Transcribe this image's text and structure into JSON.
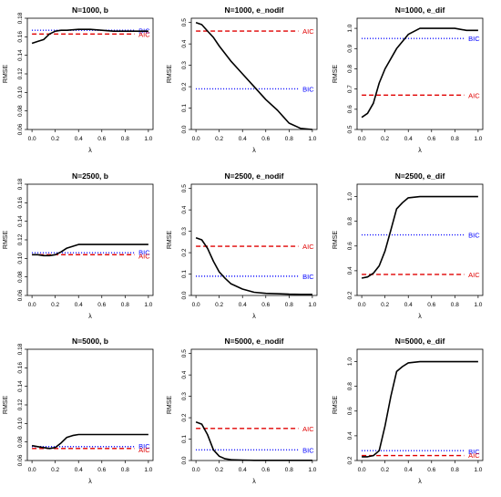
{
  "chart_data": [
    {
      "type": "line",
      "title": "N=1000, b",
      "xlabel": "λ",
      "ylabel": "RMSE",
      "xlim": [
        0,
        1
      ],
      "ylim": [
        0.06,
        0.18
      ],
      "xticks": [
        "0.0",
        "0.2",
        "0.4",
        "0.6",
        "0.8",
        "1.0"
      ],
      "yticks": [
        "0.06",
        "0.08",
        "0.10",
        "0.12",
        "0.14",
        "0.16",
        "0.18"
      ],
      "x": [
        0,
        0.05,
        0.1,
        0.15,
        0.2,
        0.25,
        0.3,
        0.4,
        0.5,
        0.6,
        0.7,
        0.8,
        0.9,
        1.0
      ],
      "series": [
        {
          "values": [
            0.153,
            0.155,
            0.157,
            0.163,
            0.166,
            0.167,
            0.167,
            0.168,
            0.168,
            0.167,
            0.166,
            0.166,
            0.166,
            0.166
          ]
        }
      ],
      "reference_lines": [
        {
          "label": "BIC",
          "value": 0.167,
          "style": "dotted",
          "color": "#0000ff"
        },
        {
          "label": "AIC",
          "value": 0.163,
          "style": "dashed",
          "color": "#e00000"
        }
      ]
    },
    {
      "type": "line",
      "title": "N=1000, e_nodif",
      "xlabel": "λ",
      "ylabel": "RMSE",
      "xlim": [
        0,
        1
      ],
      "ylim": [
        0,
        0.52
      ],
      "xticks": [
        "0.0",
        "0.2",
        "0.4",
        "0.6",
        "0.8",
        "1.0"
      ],
      "yticks": [
        "0.0",
        "0.1",
        "0.2",
        "0.3",
        "0.4",
        "0.5"
      ],
      "x": [
        0,
        0.05,
        0.1,
        0.15,
        0.2,
        0.3,
        0.4,
        0.5,
        0.6,
        0.7,
        0.8,
        0.9,
        1.0
      ],
      "series": [
        {
          "values": [
            0.5,
            0.49,
            0.46,
            0.43,
            0.39,
            0.32,
            0.26,
            0.2,
            0.14,
            0.09,
            0.03,
            0.005,
            0.0
          ]
        }
      ],
      "reference_lines": [
        {
          "label": "AIC",
          "value": 0.46,
          "style": "dashed",
          "color": "#e00000"
        },
        {
          "label": "BIC",
          "value": 0.19,
          "style": "dotted",
          "color": "#0000ff"
        }
      ]
    },
    {
      "type": "line",
      "title": "N=1000, e_dif",
      "xlabel": "λ",
      "ylabel": "RMSE",
      "xlim": [
        0,
        1
      ],
      "ylim": [
        0.5,
        1.05
      ],
      "xticks": [
        "0.0",
        "0.2",
        "0.4",
        "0.6",
        "0.8",
        "1.0"
      ],
      "yticks": [
        "0.5",
        "0.6",
        "0.7",
        "0.8",
        "0.9",
        "1.0"
      ],
      "x": [
        0,
        0.05,
        0.1,
        0.15,
        0.2,
        0.3,
        0.4,
        0.5,
        0.6,
        0.7,
        0.8,
        0.9,
        1.0
      ],
      "series": [
        {
          "values": [
            0.56,
            0.58,
            0.63,
            0.73,
            0.8,
            0.9,
            0.97,
            1.0,
            1.0,
            1.0,
            1.0,
            0.99,
            0.99
          ]
        }
      ],
      "reference_lines": [
        {
          "label": "BIC",
          "value": 0.95,
          "style": "dotted",
          "color": "#0000ff"
        },
        {
          "label": "AIC",
          "value": 0.67,
          "style": "dashed",
          "color": "#e00000"
        }
      ]
    },
    {
      "type": "line",
      "title": "N=2500, b",
      "xlabel": "λ",
      "ylabel": "RMSE",
      "xlim": [
        0,
        1
      ],
      "ylim": [
        0.06,
        0.18
      ],
      "xticks": [
        "0.0",
        "0.2",
        "0.4",
        "0.6",
        "0.8",
        "1.0"
      ],
      "yticks": [
        "0.06",
        "0.08",
        "0.10",
        "0.12",
        "0.14",
        "0.16",
        "0.18"
      ],
      "x": [
        0,
        0.05,
        0.1,
        0.15,
        0.2,
        0.25,
        0.3,
        0.35,
        0.4,
        0.5,
        0.6,
        0.7,
        0.8,
        0.9,
        1.0
      ],
      "series": [
        {
          "values": [
            0.104,
            0.104,
            0.103,
            0.103,
            0.104,
            0.107,
            0.111,
            0.113,
            0.115,
            0.115,
            0.115,
            0.115,
            0.115,
            0.115,
            0.115
          ]
        }
      ],
      "reference_lines": [
        {
          "label": "BIC",
          "value": 0.106,
          "style": "dotted",
          "color": "#0000ff"
        },
        {
          "label": "AIC",
          "value": 0.104,
          "style": "dashed",
          "color": "#e00000"
        }
      ]
    },
    {
      "type": "line",
      "title": "N=2500, e_nodif",
      "xlabel": "λ",
      "ylabel": "RMSE",
      "xlim": [
        0,
        1
      ],
      "ylim": [
        0,
        0.52
      ],
      "xticks": [
        "0.0",
        "0.2",
        "0.4",
        "0.6",
        "0.8",
        "1.0"
      ],
      "yticks": [
        "0.0",
        "0.1",
        "0.2",
        "0.3",
        "0.4",
        "0.5"
      ],
      "x": [
        0,
        0.05,
        0.1,
        0.15,
        0.2,
        0.25,
        0.3,
        0.4,
        0.5,
        0.6,
        0.7,
        0.8,
        0.9,
        1.0
      ],
      "series": [
        {
          "values": [
            0.27,
            0.26,
            0.22,
            0.16,
            0.11,
            0.08,
            0.055,
            0.03,
            0.015,
            0.01,
            0.008,
            0.006,
            0.005,
            0.005
          ]
        }
      ],
      "reference_lines": [
        {
          "label": "AIC",
          "value": 0.23,
          "style": "dashed",
          "color": "#e00000"
        },
        {
          "label": "BIC",
          "value": 0.09,
          "style": "dotted",
          "color": "#0000ff"
        }
      ]
    },
    {
      "type": "line",
      "title": "N=2500, e_dif",
      "xlabel": "λ",
      "ylabel": "RMSE",
      "xlim": [
        0,
        1
      ],
      "ylim": [
        0.2,
        1.1
      ],
      "xticks": [
        "0.0",
        "0.2",
        "0.4",
        "0.6",
        "0.8",
        "1.0"
      ],
      "yticks": [
        "0.2",
        "0.4",
        "0.6",
        "0.8",
        "1.0"
      ],
      "x": [
        0,
        0.05,
        0.1,
        0.15,
        0.2,
        0.25,
        0.3,
        0.35,
        0.4,
        0.5,
        0.6,
        0.7,
        0.8,
        0.9,
        1.0
      ],
      "series": [
        {
          "values": [
            0.34,
            0.35,
            0.38,
            0.44,
            0.56,
            0.73,
            0.9,
            0.95,
            0.99,
            1.0,
            1.0,
            1.0,
            1.0,
            1.0,
            1.0
          ]
        }
      ],
      "reference_lines": [
        {
          "label": "BIC",
          "value": 0.69,
          "style": "dotted",
          "color": "#0000ff"
        },
        {
          "label": "AIC",
          "value": 0.37,
          "style": "dashed",
          "color": "#e00000"
        }
      ]
    },
    {
      "type": "line",
      "title": "N=5000, b",
      "xlabel": "λ",
      "ylabel": "RMSE",
      "xlim": [
        0,
        1
      ],
      "ylim": [
        0.06,
        0.18
      ],
      "xticks": [
        "0.0",
        "0.2",
        "0.4",
        "0.6",
        "0.8",
        "1.0"
      ],
      "yticks": [
        "0.06",
        "0.08",
        "0.10",
        "0.12",
        "0.14",
        "0.16",
        "0.18"
      ],
      "x": [
        0,
        0.05,
        0.1,
        0.15,
        0.2,
        0.25,
        0.3,
        0.35,
        0.4,
        0.5,
        0.6,
        0.7,
        0.8,
        0.9,
        1.0
      ],
      "series": [
        {
          "values": [
            0.076,
            0.075,
            0.074,
            0.073,
            0.074,
            0.079,
            0.085,
            0.087,
            0.088,
            0.088,
            0.088,
            0.088,
            0.088,
            0.088,
            0.088
          ]
        }
      ],
      "reference_lines": [
        {
          "label": "BIC",
          "value": 0.075,
          "style": "dotted",
          "color": "#0000ff"
        },
        {
          "label": "AIC",
          "value": 0.073,
          "style": "dashed",
          "color": "#e00000"
        }
      ]
    },
    {
      "type": "line",
      "title": "N=5000, e_nodif",
      "xlabel": "λ",
      "ylabel": "RMSE",
      "xlim": [
        0,
        1
      ],
      "ylim": [
        0,
        0.52
      ],
      "xticks": [
        "0.0",
        "0.2",
        "0.4",
        "0.6",
        "0.8",
        "1.0"
      ],
      "yticks": [
        "0.0",
        "0.1",
        "0.2",
        "0.3",
        "0.4",
        "0.5"
      ],
      "x": [
        0,
        0.05,
        0.1,
        0.15,
        0.2,
        0.25,
        0.3,
        0.4,
        0.5,
        0.6,
        0.7,
        0.8,
        0.9,
        1.0
      ],
      "series": [
        {
          "values": [
            0.18,
            0.17,
            0.12,
            0.05,
            0.02,
            0.008,
            0.004,
            0.002,
            0.001,
            0.001,
            0.001,
            0.001,
            0.001,
            0.001
          ]
        }
      ],
      "reference_lines": [
        {
          "label": "AIC",
          "value": 0.15,
          "style": "dashed",
          "color": "#e00000"
        },
        {
          "label": "BIC",
          "value": 0.05,
          "style": "dotted",
          "color": "#0000ff"
        }
      ]
    },
    {
      "type": "line",
      "title": "N=5000, e_dif",
      "xlabel": "λ",
      "ylabel": "RMSE",
      "xlim": [
        0,
        1
      ],
      "ylim": [
        0.2,
        1.1
      ],
      "xticks": [
        "0.0",
        "0.2",
        "0.4",
        "0.6",
        "0.8",
        "1.0"
      ],
      "yticks": [
        "0.2",
        "0.4",
        "0.6",
        "0.8",
        "1.0"
      ],
      "x": [
        0,
        0.05,
        0.1,
        0.15,
        0.2,
        0.25,
        0.3,
        0.35,
        0.4,
        0.5,
        0.6,
        0.7,
        0.8,
        0.9,
        1.0
      ],
      "series": [
        {
          "values": [
            0.23,
            0.23,
            0.24,
            0.28,
            0.48,
            0.72,
            0.92,
            0.96,
            0.99,
            1.0,
            1.0,
            1.0,
            1.0,
            1.0,
            1.0
          ]
        }
      ],
      "reference_lines": [
        {
          "label": "BIC",
          "value": 0.28,
          "style": "dotted",
          "color": "#0000ff"
        },
        {
          "label": "AIC",
          "value": 0.24,
          "style": "dashed",
          "color": "#e00000"
        }
      ]
    }
  ]
}
